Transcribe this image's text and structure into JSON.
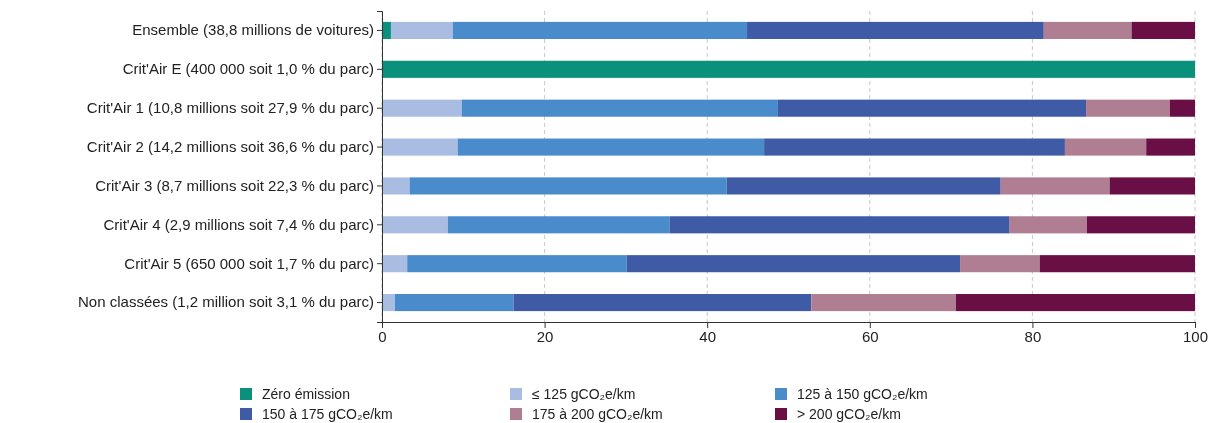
{
  "chart_data": {
    "type": "bar",
    "orientation": "horizontal",
    "stacked": true,
    "categories": [
      "Ensemble (38,8 millions de voitures)",
      "Crit'Air E (400 000 soit 1,0 % du parc)",
      "Crit'Air 1 (10,8 millions soit 27,9 % du parc)",
      "Crit'Air 2 (14,2 millions soit 36,6 % du parc)",
      "Crit'Air 3 (8,7 millions soit 22,3 % du parc)",
      "Crit'Air 4 (2,9 millions soit 7,4 % du parc)",
      "Crit'Air 5 (650 000 soit 1,7 % du parc)",
      "Non classées (1,2 million soit 3,1 % du parc)"
    ],
    "series": [
      {
        "name": "Zéro émission",
        "color": "#0a917b",
        "values": [
          1.1,
          100,
          0,
          0,
          0,
          0,
          0,
          0
        ]
      },
      {
        "name": "≤ 125 gCO₂e/km",
        "color": "#a9bde2",
        "values": [
          7.6,
          0,
          9.8,
          9.3,
          3.4,
          8.1,
          3.1,
          1.6
        ]
      },
      {
        "name": "125 à 150 gCO₂e/km",
        "color": "#4a8bcb",
        "values": [
          36.2,
          0,
          38.9,
          37.7,
          39.0,
          27.3,
          27.0,
          14.6
        ]
      },
      {
        "name": "150 à 175 gCO₂e/km",
        "color": "#3f5ba6",
        "values": [
          36.5,
          0,
          37.9,
          37.0,
          33.7,
          41.8,
          41.0,
          36.6
        ]
      },
      {
        "name": "175 à 200 gCO₂e/km",
        "color": "#b07e93",
        "values": [
          10.8,
          0,
          10.3,
          10.0,
          13.4,
          9.5,
          9.8,
          17.8
        ]
      },
      {
        "name": "> 200 gCO₂e/km",
        "color": "#6a0e46",
        "values": [
          7.8,
          0,
          3.1,
          6.0,
          10.5,
          13.3,
          19.1,
          29.4
        ]
      }
    ],
    "xlim": [
      0,
      100
    ],
    "xticks": [
      0,
      20,
      40,
      60,
      80,
      100
    ],
    "grid": "x",
    "legend": "bottom"
  }
}
